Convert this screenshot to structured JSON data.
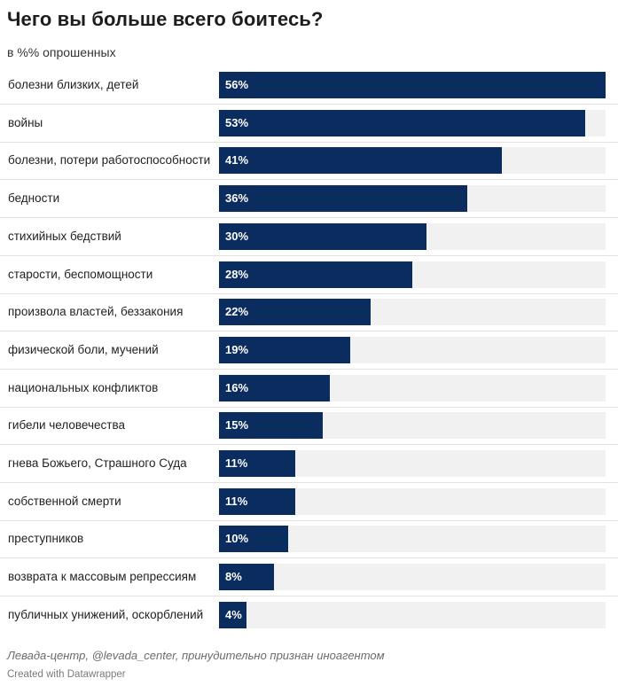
{
  "header": {
    "title": "Чего вы больше всего боитесь?",
    "subtitle": "в %% опрошенных"
  },
  "footer": {
    "source": "Левада-центр, @levada_center, принудительно признан иноагентом",
    "credit": "Created with Datawrapper"
  },
  "colors": {
    "bar": "#0b2c5e",
    "track": "#f1f1f1"
  },
  "chart_data": {
    "type": "bar",
    "orientation": "horizontal",
    "title": "Чего вы больше всего боитесь?",
    "subtitle": "в %% опрошенных",
    "xlim": [
      0,
      56
    ],
    "categories": [
      "болезни близких, детей",
      "войны",
      "болезни, потери работоспособности",
      "бедности",
      "стихийных бедствий",
      "старости, беспомощности",
      "произвола властей, беззакония",
      "физической боли, мучений",
      "национальных конфликтов",
      "гибели человечества",
      "гнева Божьего, Страшного Суда",
      "собственной смерти",
      "преступников",
      "возврата к массовым репрессиям",
      "публичных унижений, оскорблений"
    ],
    "values": [
      56,
      53,
      41,
      36,
      30,
      28,
      22,
      19,
      16,
      15,
      11,
      11,
      10,
      8,
      4
    ],
    "labels": [
      "56%",
      "53%",
      "41%",
      "36%",
      "30%",
      "28%",
      "22%",
      "19%",
      "16%",
      "15%",
      "11%",
      "11%",
      "10%",
      "8%",
      "4%"
    ]
  }
}
